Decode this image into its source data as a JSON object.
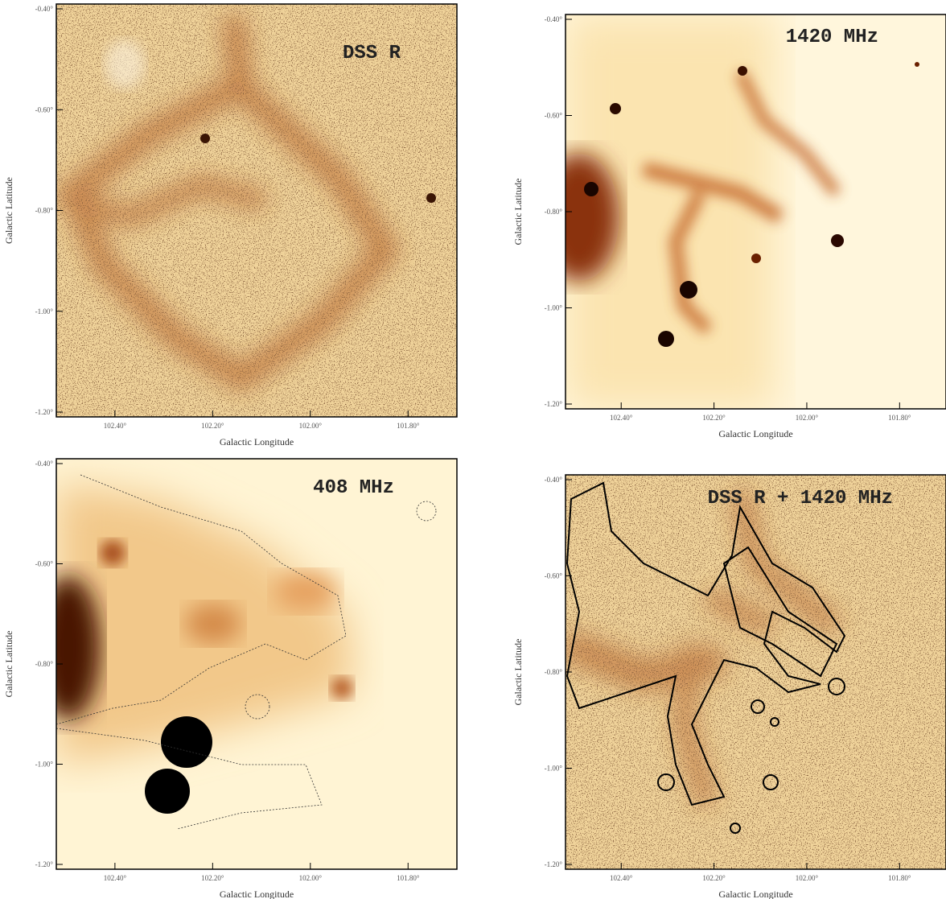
{
  "panels": [
    {
      "title": "DSS R",
      "x_label": "Galactic Longitude",
      "y_label": "Galactic Latitude",
      "x_ticks": [
        "102.40°",
        "102.20°",
        "102.00°",
        "101.80°"
      ],
      "y_ticks": [
        "-0.40°",
        "-0.60°",
        "-0.80°",
        "-1.00°",
        "-1.20°"
      ]
    },
    {
      "title": "1420 MHz",
      "x_label": "Galactic Longitude",
      "y_label": "Galactic Latitude",
      "x_ticks": [
        "102.40°",
        "102.20°",
        "102.00°",
        "101.80°"
      ],
      "y_ticks": [
        "-0.40°",
        "-0.60°",
        "-0.80°",
        "-1.00°",
        "-1.20°"
      ]
    },
    {
      "title": "408 MHz",
      "x_label": "Galactic Longitude",
      "y_label": "Galactic Latitude",
      "x_ticks": [
        "102.40°",
        "102.20°",
        "102.00°",
        "101.80°"
      ],
      "y_ticks": [
        "-0.40°",
        "-0.60°",
        "-0.80°",
        "-1.00°",
        "-1.20°"
      ]
    },
    {
      "title": "DSS R + 1420 MHz",
      "x_label": "Galactic Longitude",
      "y_label": "Galactic Latitude",
      "x_ticks": [
        "102.40°",
        "102.20°",
        "102.00°",
        "101.80°"
      ],
      "y_ticks": [
        "-0.40°",
        "-0.60°",
        "-0.80°",
        "-1.00°",
        "-1.20°"
      ]
    }
  ]
}
